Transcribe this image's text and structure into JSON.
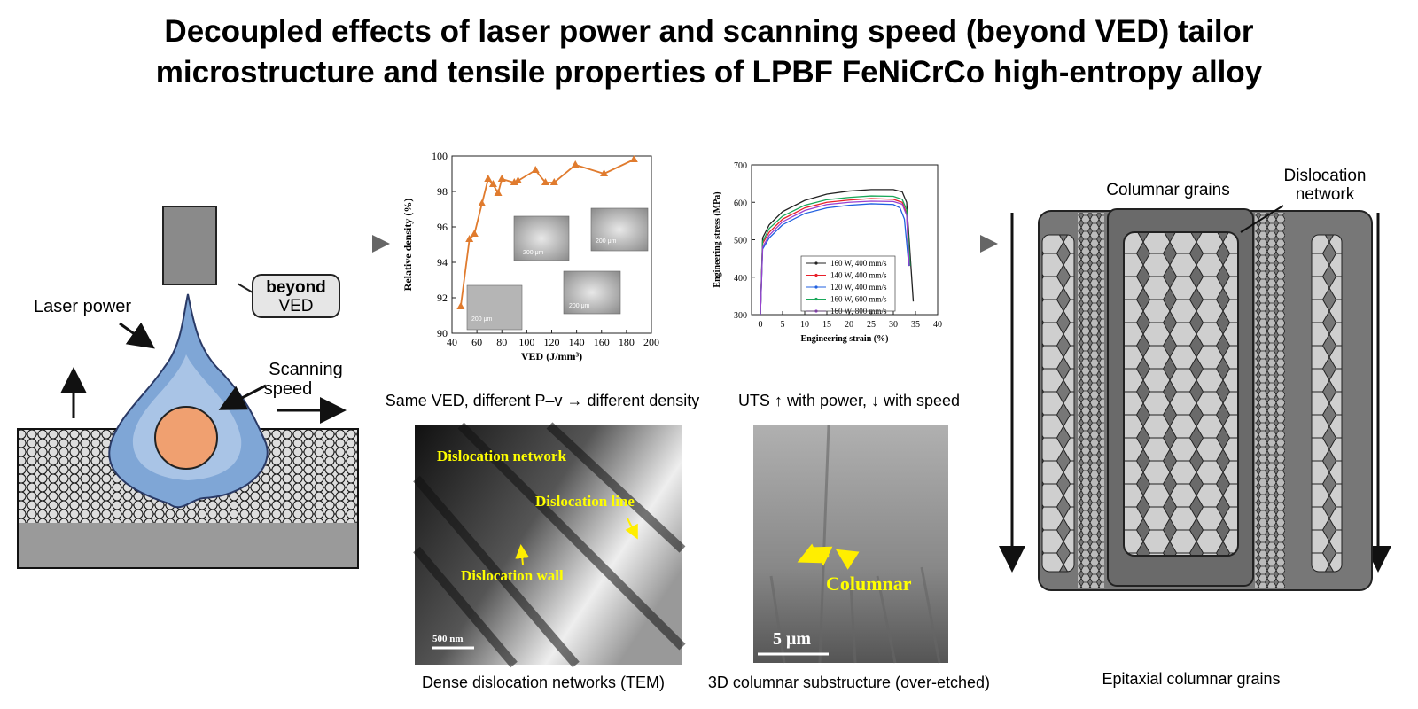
{
  "title": {
    "lines": [
      "Decoupled effects of laser power and scanning speed (beyond VED) tailor",
      "microstructure and tensile properties of LPBF FeNiCrCo high-entropy alloy"
    ]
  },
  "schematic": {
    "laser_power": "Laser power",
    "scanning_speed": [
      "Scanning",
      "speed"
    ],
    "beyond_ved": [
      "beyond",
      "VED"
    ]
  },
  "density_chart": {
    "type": "line",
    "color": "#e07b2e",
    "x_label": "VED (J/mm³)",
    "y_label": "Relative density (%)",
    "x": [
      47,
      54,
      58,
      64,
      69,
      73,
      77,
      80,
      90,
      93,
      107,
      115,
      122,
      139,
      162,
      186
    ],
    "values": [
      91.5,
      95.3,
      95.6,
      97.3,
      98.7,
      98.4,
      97.9,
      98.7,
      98.5,
      98.6,
      99.2,
      98.5,
      98.5,
      99.5,
      99.0,
      99.8
    ],
    "xlim": [
      40,
      200
    ],
    "ylim": [
      90,
      100
    ],
    "xticks": [
      40,
      60,
      80,
      100,
      120,
      140,
      160,
      180,
      200
    ],
    "yticks": [
      90,
      92,
      94,
      96,
      98,
      100
    ],
    "insets": [
      "200 μm",
      "200 μm",
      "200 μm",
      "200 μm"
    ],
    "caption": "Same VED, different P–v → different density"
  },
  "tensile_chart": {
    "type": "line",
    "x_label": "Engineering strain (%)",
    "y_label": "Engineering stress (MPa)",
    "xlim": [
      -2,
      40
    ],
    "ylim": [
      300,
      700
    ],
    "xticks": [
      0,
      5,
      10,
      15,
      20,
      25,
      30,
      35,
      40
    ],
    "yticks": [
      300,
      400,
      500,
      600,
      700
    ],
    "series": [
      {
        "name": "160 W, 400 mm/s",
        "color": "#222222",
        "x": [
          0,
          0.5,
          2,
          5,
          10,
          15,
          20,
          25,
          30,
          32,
          33,
          34.5
        ],
        "values": [
          300,
          505,
          540,
          575,
          605,
          622,
          630,
          634,
          634,
          628,
          600,
          335
        ]
      },
      {
        "name": "140 W, 400 mm/s",
        "color": "#e8202a",
        "x": [
          0,
          0.5,
          2,
          5,
          10,
          15,
          20,
          25,
          30,
          32,
          33,
          33.5
        ],
        "values": [
          300,
          490,
          520,
          555,
          585,
          600,
          606,
          610,
          608,
          600,
          570,
          430
        ]
      },
      {
        "name": "120 W, 400 mm/s",
        "color": "#2060e0",
        "x": [
          0,
          0.5,
          2,
          5,
          10,
          15,
          20,
          25,
          30,
          31.5,
          32.5,
          33.5
        ],
        "values": [
          300,
          475,
          505,
          540,
          570,
          585,
          592,
          596,
          594,
          585,
          555,
          430
        ]
      },
      {
        "name": "160 W, 600 mm/s",
        "color": "#1aa85a",
        "x": [
          0,
          0.5,
          2,
          5,
          10,
          15,
          20,
          25,
          30,
          32,
          33,
          33.8
        ],
        "values": [
          300,
          495,
          530,
          563,
          592,
          607,
          613,
          617,
          616,
          608,
          580,
          430
        ]
      },
      {
        "name": "160 W, 800 mm/s",
        "color": "#9a40d0",
        "x": [
          0,
          0.5,
          2,
          5,
          10,
          15,
          20,
          25,
          30,
          32,
          33,
          33.6
        ],
        "values": [
          300,
          480,
          512,
          548,
          578,
          594,
          600,
          603,
          602,
          595,
          565,
          430
        ]
      }
    ],
    "caption": "UTS ↑ with power, ↓ with speed"
  },
  "tem": {
    "network": "Dislocation network",
    "line": "Dislocation line",
    "wall": "Dislocation wall",
    "scale": "500 nm",
    "caption": "Dense dislocation networks (TEM)"
  },
  "sem": {
    "label": "Columnar",
    "scale": "5 μm",
    "caption": "3D columnar substructure (over-etched)"
  },
  "grains": {
    "columnar_grains": "Columnar grains",
    "dislocation_network": [
      "Dislocation",
      "network"
    ],
    "caption": "Epitaxial columnar grains"
  }
}
